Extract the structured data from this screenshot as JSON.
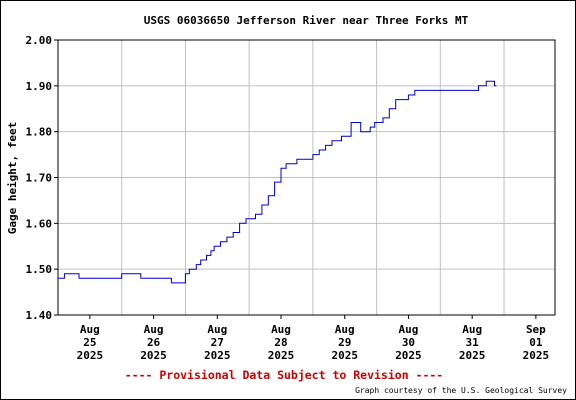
{
  "chart_data": {
    "type": "line",
    "title": "USGS 06036650 Jefferson River near Three Forks MT",
    "xlabel": "",
    "ylabel": "Gage height, feet",
    "ylim": [
      1.4,
      2.0
    ],
    "yticks": [
      "1.40",
      "1.50",
      "1.60",
      "1.70",
      "1.80",
      "1.90",
      "2.00"
    ],
    "xlim": [
      0,
      7.8
    ],
    "xticks": [
      {
        "month": "Aug",
        "day": "25",
        "year": "2025",
        "x": 0.5
      },
      {
        "month": "Aug",
        "day": "26",
        "year": "2025",
        "x": 1.5
      },
      {
        "month": "Aug",
        "day": "27",
        "year": "2025",
        "x": 2.5
      },
      {
        "month": "Aug",
        "day": "28",
        "year": "2025",
        "x": 3.5
      },
      {
        "month": "Aug",
        "day": "29",
        "year": "2025",
        "x": 4.5
      },
      {
        "month": "Aug",
        "day": "30",
        "year": "2025",
        "x": 5.5
      },
      {
        "month": "Aug",
        "day": "31",
        "year": "2025",
        "x": 6.5
      },
      {
        "month": "Sep",
        "day": "01",
        "year": "2025",
        "x": 7.5
      }
    ],
    "grid": true,
    "line_color": "#0000cc",
    "series": [
      {
        "x": [
          0.0,
          0.05,
          0.1,
          0.15,
          0.3,
          0.33,
          0.4,
          0.5,
          0.75,
          0.95,
          1.0,
          1.05,
          1.25,
          1.3,
          1.35,
          1.55,
          1.62,
          1.72,
          1.78,
          1.82,
          1.95,
          2.0,
          2.06,
          2.1,
          2.17,
          2.24,
          2.33,
          2.4,
          2.45,
          2.55,
          2.65,
          2.75,
          2.85,
          2.95,
          3.0,
          3.1,
          3.2,
          3.3,
          3.4,
          3.5,
          3.58,
          3.65,
          3.7,
          3.75,
          3.8,
          3.85,
          3.9,
          4.0,
          4.1,
          4.2,
          4.3,
          4.45,
          4.6,
          4.75,
          4.82,
          4.9,
          4.97,
          5.05,
          5.1,
          5.2,
          5.3,
          5.4,
          5.5,
          5.6,
          5.7,
          5.8,
          5.9,
          6.05,
          6.2,
          6.4,
          6.5,
          6.6,
          6.7,
          6.72,
          6.78,
          6.82,
          6.85,
          6.88
        ],
        "y": [
          1.48,
          1.48,
          1.49,
          1.49,
          1.49,
          1.48,
          1.48,
          1.48,
          1.48,
          1.48,
          1.49,
          1.49,
          1.49,
          1.48,
          1.48,
          1.48,
          1.48,
          1.48,
          1.47,
          1.47,
          1.47,
          1.49,
          1.5,
          1.5,
          1.51,
          1.52,
          1.53,
          1.54,
          1.55,
          1.56,
          1.57,
          1.58,
          1.6,
          1.61,
          1.61,
          1.62,
          1.64,
          1.66,
          1.69,
          1.72,
          1.73,
          1.73,
          1.73,
          1.74,
          1.74,
          1.74,
          1.74,
          1.75,
          1.76,
          1.77,
          1.78,
          1.79,
          1.82,
          1.8,
          1.8,
          1.81,
          1.82,
          1.82,
          1.83,
          1.85,
          1.87,
          1.87,
          1.88,
          1.89,
          1.89,
          1.89,
          1.89,
          1.89,
          1.89,
          1.89,
          1.89,
          1.9,
          1.9,
          1.91,
          1.91,
          1.91,
          1.9,
          1.9
        ]
      }
    ],
    "footer_note": "---- Provisional Data Subject to Revision ----",
    "footer_note_color": "#cc0000",
    "credit": "Graph courtesy of the U.S. Geological Survey"
  }
}
